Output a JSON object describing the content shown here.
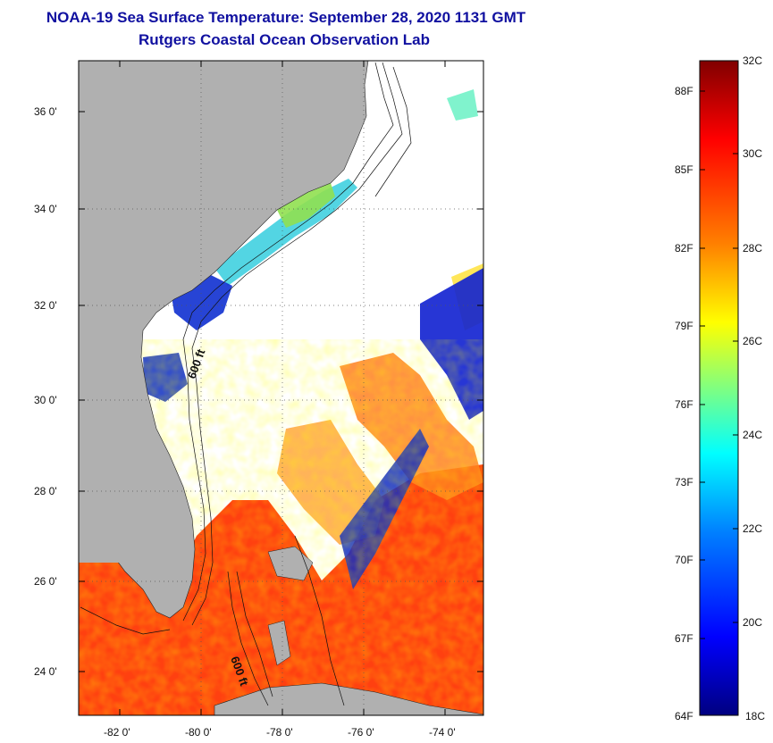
{
  "title_line1": "NOAA-19 Sea Surface Temperature:  September 28, 2020 1131 GMT",
  "title_line2": "Rutgers Coastal Ocean Observation Lab",
  "lat_labels": [
    "36 0'",
    "34 0'",
    "32 0'",
    "30 0'",
    "28 0'",
    "26 0'",
    "24 0'"
  ],
  "lon_labels": [
    "-82 0'",
    "-80 0'",
    "-78 0'",
    "-76 0'",
    "-74 0'"
  ],
  "contour_labels": [
    "600 ft",
    "600 ft"
  ],
  "colorbar": {
    "celsius": [
      "32C",
      "30C",
      "28C",
      "26C",
      "24C",
      "22C",
      "20C",
      "18C"
    ],
    "fahrenheit": [
      "88F",
      "85F",
      "82F",
      "79F",
      "76F",
      "73F",
      "70F",
      "67F",
      "64F"
    ],
    "colors": [
      "#000080",
      "#0000ff",
      "#0080ff",
      "#00ffff",
      "#80ff80",
      "#ffff00",
      "#ff8000",
      "#ff0000",
      "#800000"
    ]
  },
  "colors": {
    "land": "#b0b0b0",
    "title": "#1010a0",
    "ocean_cloud": "#ffffff"
  }
}
